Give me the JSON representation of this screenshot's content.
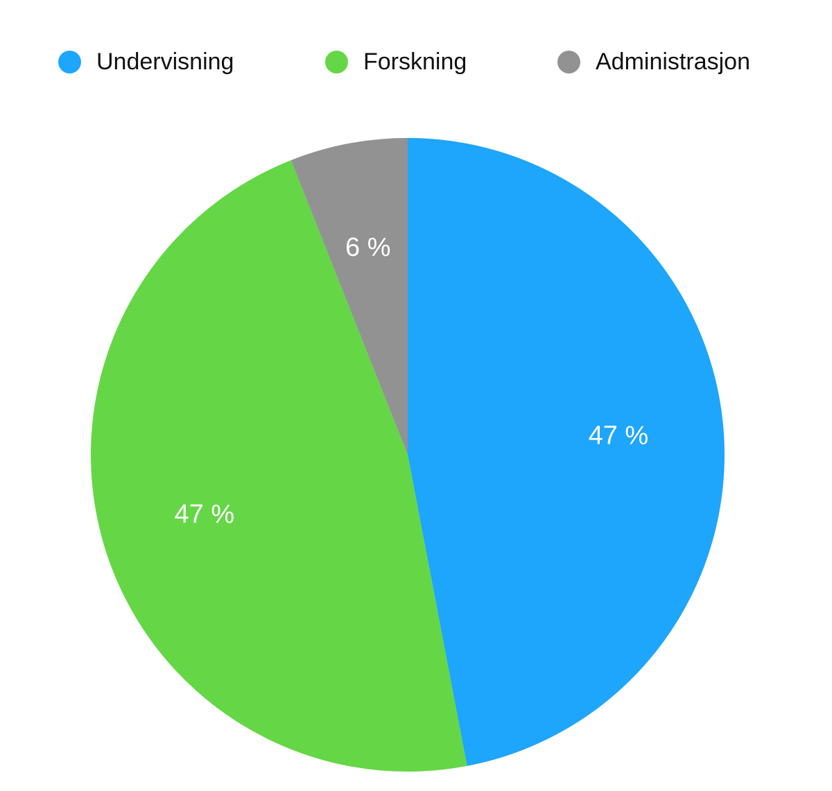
{
  "chart_data": {
    "type": "pie",
    "categories": [
      "Undervisning",
      "Forskning",
      "Administrasjon"
    ],
    "values": [
      47,
      47,
      6
    ],
    "data_labels": [
      "47 %",
      "47 %",
      "6 %"
    ],
    "colors": [
      "#1EA5FC",
      "#65D646",
      "#929292"
    ],
    "legend_position": "top",
    "start": "top, clockwise"
  }
}
